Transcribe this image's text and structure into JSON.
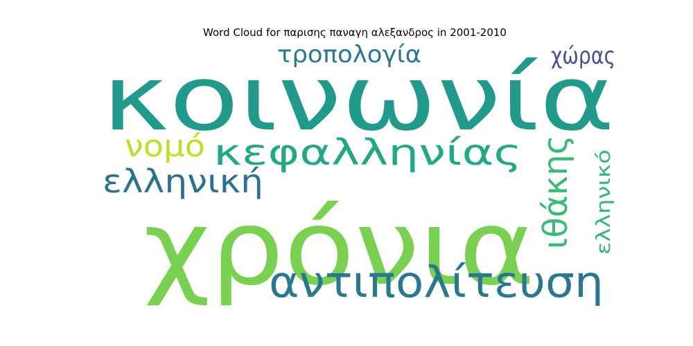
{
  "chart_data": {
    "type": "wordcloud",
    "title": "Word Cloud for παρισης παναγη αλεξανδρος in 2001-2010",
    "words": [
      {
        "text": "κοινωνία",
        "color": "#21998b"
      },
      {
        "text": "χρόνια",
        "color": "#7ad151"
      },
      {
        "text": "αντιπολίτευση",
        "color": "#2a788e"
      },
      {
        "text": "κεφαλληνίας",
        "color": "#22a884"
      },
      {
        "text": "ελληνική",
        "color": "#2c728e"
      },
      {
        "text": "τροπολογία",
        "color": "#2a788e"
      },
      {
        "text": "ιθάκης",
        "color": "#3aba76"
      },
      {
        "text": "νομό",
        "color": "#bddf26"
      },
      {
        "text": "χώρας",
        "color": "#46508a"
      },
      {
        "text": "ελληνικό",
        "color": "#35b779"
      }
    ]
  }
}
